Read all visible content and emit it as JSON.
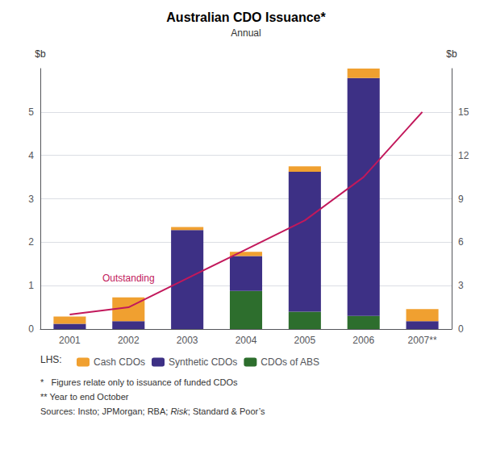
{
  "chart_data": {
    "type": "bar",
    "title": "Australian CDO Issuance*",
    "subtitle": "Annual",
    "categories": [
      "2001",
      "2002",
      "2003",
      "2004",
      "2005",
      "2006",
      "2007**"
    ],
    "stacked": true,
    "series": [
      {
        "name": "Cash CDOs",
        "color": "#F0A030",
        "values": [
          0.17,
          0.55,
          0.07,
          0.1,
          0.13,
          0.22,
          0.28
        ]
      },
      {
        "name": "Synthetic CDOs",
        "color": "#3D3085",
        "values": [
          0.12,
          0.18,
          2.28,
          0.8,
          3.22,
          5.48,
          0.18
        ]
      },
      {
        "name": "CDOs of ABS",
        "color": "#2D6E2D",
        "values": [
          0.0,
          0.0,
          0.0,
          0.88,
          0.4,
          0.3,
          0.0
        ]
      },
      {
        "type": "line",
        "axis": "y2",
        "color": "#C2185B",
        "values": [
          1.0,
          1.5,
          3.5,
          5.5,
          7.5,
          10.5,
          15.0
        ]
      }
    ],
    "ylim": [
      0,
      6
    ],
    "yticks": [
      0,
      1,
      2,
      3,
      4,
      5
    ],
    "y2lim": [
      0,
      18
    ],
    "y2ticks": [
      0,
      3,
      6,
      9,
      12,
      15
    ],
    "ylabel": "$b",
    "y2label": "$b",
    "annotation": "Outstanding",
    "legend_title": "LHS:",
    "legend": "bottom",
    "grid": true,
    "footnotes": [
      "*   Figures relate only to issuance of funded CDOs",
      "** Year to end October"
    ],
    "sources": [
      "Sources: Insto; JPMorgan; RBA; ",
      "Risk",
      "; Standard & Poor’s"
    ]
  }
}
